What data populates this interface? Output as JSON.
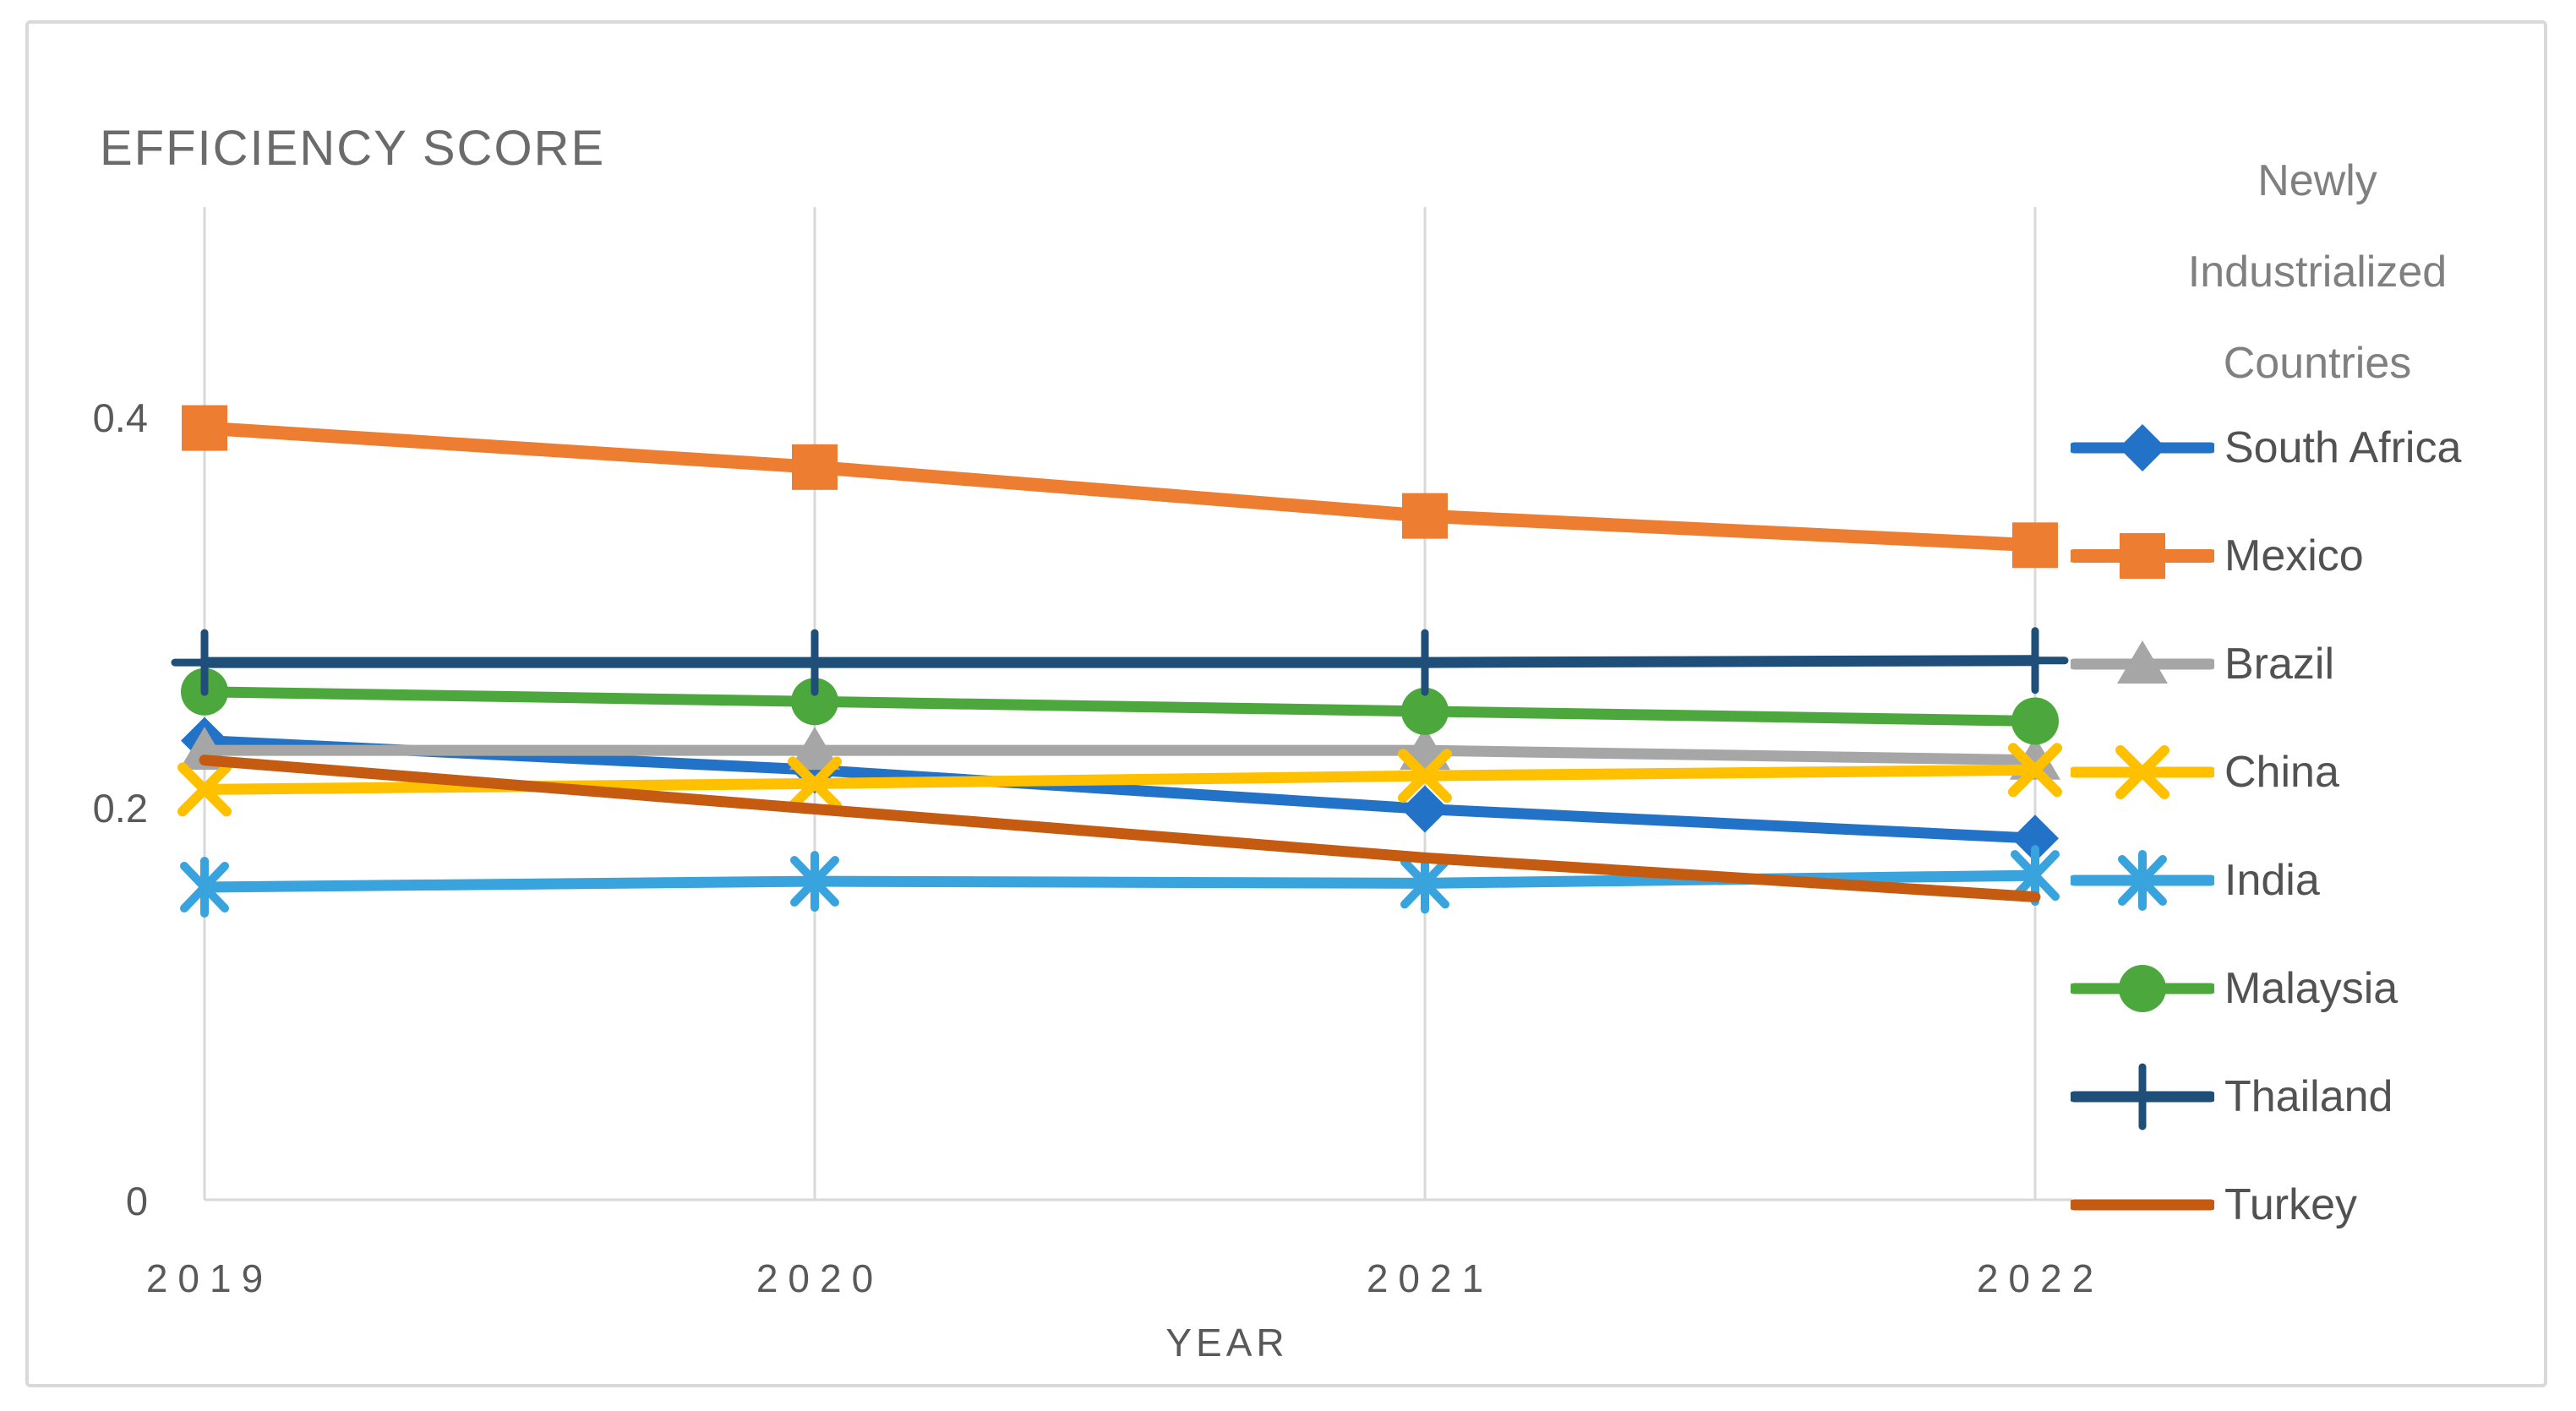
{
  "chart_data": {
    "type": "line",
    "title": "EFFICIENCY SCORE",
    "xlabel": "YEAR",
    "ylabel": "EFFICIENCY SCORE",
    "x_categories": [
      "2019",
      "2020",
      "2021",
      "2022"
    ],
    "y_axis": {
      "ticks": [
        "0",
        "0.2",
        "0.4"
      ],
      "tick_values": [
        0,
        0.2,
        0.4
      ],
      "ylim": [
        0,
        0.5
      ]
    },
    "grid": "vertical-only",
    "legend_position": "right",
    "legend_title": "Newly Industrialized Countries",
    "series": [
      {
        "name": "South Africa",
        "color": "#2272C8",
        "marker": "diamond",
        "values": [
          0.235,
          0.22,
          0.2,
          0.185
        ]
      },
      {
        "name": "Mexico",
        "color": "#ED7D31",
        "marker": "square",
        "values": [
          0.395,
          0.375,
          0.35,
          0.335
        ]
      },
      {
        "name": "Brazil",
        "color": "#A6A6A6",
        "marker": "triangle",
        "values": [
          0.23,
          0.23,
          0.23,
          0.225
        ]
      },
      {
        "name": "China",
        "color": "#FFC000",
        "marker": "x",
        "values": [
          0.21,
          0.213,
          0.217,
          0.22
        ]
      },
      {
        "name": "India",
        "color": "#38A3DC",
        "marker": "asterisk",
        "values": [
          0.16,
          0.163,
          0.162,
          0.166
        ]
      },
      {
        "name": "Malaysia",
        "color": "#4CA83C",
        "marker": "circle",
        "values": [
          0.26,
          0.255,
          0.25,
          0.245
        ]
      },
      {
        "name": "Thailand",
        "color": "#1F4E79",
        "marker": "plus",
        "values": [
          0.275,
          0.275,
          0.275,
          0.276
        ]
      },
      {
        "name": "Turkey",
        "color": "#C55A11",
        "marker": "none",
        "values": [
          0.225,
          0.2,
          0.175,
          0.155
        ]
      }
    ]
  }
}
